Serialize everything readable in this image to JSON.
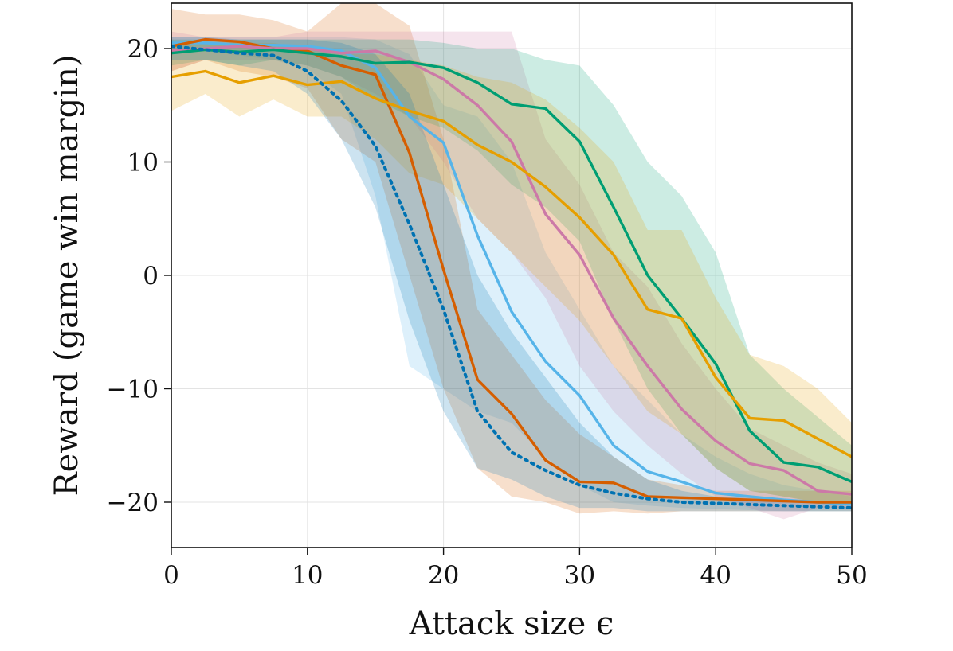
{
  "chart_data": {
    "type": "line",
    "title": "",
    "xlabel": "Attack size ϵ",
    "ylabel": "Reward (game win margin)",
    "xlim": [
      0,
      50
    ],
    "ylim": [
      -24,
      24
    ],
    "xticks": [
      0,
      10,
      20,
      30,
      40,
      50
    ],
    "yticks": [
      -20,
      -10,
      0,
      10,
      20
    ],
    "xtick_labels": [
      "0",
      "10",
      "20",
      "30",
      "40",
      "50"
    ],
    "ytick_labels": [
      "−20",
      "−10",
      "0",
      "10",
      "20"
    ],
    "grid": true,
    "legend": "none",
    "x": [
      0,
      2.5,
      5,
      7.5,
      10,
      12.5,
      15,
      17.5,
      20,
      22.5,
      25,
      27.5,
      30,
      32.5,
      35,
      37.5,
      40,
      42.5,
      45,
      47.5,
      50
    ],
    "series": [
      {
        "color": "#56B4E9",
        "style": "solid",
        "values": [
          20.5,
          20.5,
          20.3,
          20.3,
          20.2,
          19.8,
          18.3,
          14.0,
          11.7,
          3.5,
          -3.2,
          -7.6,
          -10.6,
          -15.0,
          -17.3,
          -18.2,
          -19.2,
          -19.5,
          -19.8,
          -20.0,
          -20.2
        ],
        "lower": [
          19.5,
          19.8,
          19.4,
          19.0,
          18.2,
          16.0,
          7.0,
          -8.0,
          -10.0,
          -12.0,
          -13.0,
          -16.0,
          -18.5,
          -20.0,
          -20.3,
          -20.5,
          -20.6,
          -20.7,
          -20.8,
          -20.8,
          -20.8
        ],
        "upper": [
          21.0,
          21.0,
          21.0,
          21.0,
          21.0,
          21.0,
          20.8,
          19.5,
          15.0,
          14.0,
          10.0,
          2.0,
          -3.0,
          -8.0,
          -11.0,
          -14.0,
          -16.0,
          -17.5,
          -18.5,
          -19.0,
          -19.5
        ]
      },
      {
        "color": "#D55E00",
        "style": "solid",
        "values": [
          20.2,
          20.8,
          20.6,
          20.0,
          19.8,
          18.5,
          17.7,
          10.8,
          0.5,
          -9.2,
          -12.2,
          -16.3,
          -18.2,
          -18.3,
          -19.5,
          -19.6,
          -19.7,
          -19.8,
          -19.9,
          -20.0,
          -20.0
        ],
        "lower": [
          18.0,
          19.0,
          18.0,
          17.5,
          16.5,
          12.0,
          10.0,
          0.0,
          -10.0,
          -17.0,
          -19.5,
          -20.0,
          -21.0,
          -20.8,
          -21.0,
          -20.8,
          -20.8,
          -20.8,
          -20.8,
          -20.8,
          -20.8
        ],
        "upper": [
          23.5,
          23.0,
          23.0,
          22.5,
          21.5,
          24.0,
          24.0,
          22.0,
          12.0,
          -3.0,
          -7.0,
          -11.0,
          -14.0,
          -16.0,
          -18.0,
          -18.5,
          -19.0,
          -19.0,
          -19.0,
          -19.0,
          -19.0
        ]
      },
      {
        "color": "#CC79A7",
        "style": "solid",
        "values": [
          19.8,
          20.0,
          20.2,
          20.0,
          20.0,
          19.6,
          19.8,
          18.8,
          17.3,
          15.0,
          11.8,
          5.4,
          1.8,
          -3.8,
          -8.0,
          -11.8,
          -14.6,
          -16.6,
          -17.2,
          -19.0,
          -19.3
        ],
        "lower": [
          18.0,
          19.0,
          19.0,
          19.0,
          18.5,
          17.5,
          16.0,
          14.0,
          10.0,
          5.0,
          2.0,
          -2.0,
          -8.0,
          -12.0,
          -15.0,
          -17.5,
          -19.5,
          -20.5,
          -21.5,
          -20.5,
          -20.5
        ],
        "upper": [
          21.5,
          21.0,
          21.0,
          21.0,
          21.5,
          21.5,
          21.5,
          21.5,
          21.5,
          21.5,
          21.5,
          12.0,
          8.0,
          2.0,
          -1.0,
          -6.0,
          -10.0,
          -13.5,
          -15.0,
          -16.5,
          -17.5
        ]
      },
      {
        "color": "#009E73",
        "style": "solid",
        "values": [
          19.6,
          19.9,
          19.7,
          19.9,
          19.6,
          19.3,
          18.7,
          18.8,
          18.3,
          17.0,
          15.1,
          14.7,
          11.8,
          6.0,
          0.0,
          -3.8,
          -7.8,
          -13.7,
          -16.5,
          -16.9,
          -18.2
        ],
        "lower": [
          18.5,
          19.0,
          18.5,
          19.0,
          18.5,
          17.5,
          15.5,
          14.0,
          13.0,
          11.0,
          8.0,
          6.0,
          3.0,
          -4.0,
          -10.0,
          -14.0,
          -17.0,
          -19.0,
          -19.5,
          -20.0,
          -20.3
        ],
        "upper": [
          20.8,
          20.8,
          20.8,
          20.8,
          20.8,
          20.8,
          20.8,
          20.8,
          20.5,
          20.0,
          20.0,
          19.0,
          18.5,
          15.0,
          10.0,
          7.0,
          2.0,
          -7.0,
          -10.0,
          -12.5,
          -15.0
        ]
      },
      {
        "color": "#E69F00",
        "style": "solid",
        "values": [
          17.5,
          18.0,
          17.0,
          17.6,
          16.8,
          17.1,
          15.6,
          14.5,
          13.6,
          11.5,
          10.0,
          7.8,
          5.1,
          1.8,
          -3.0,
          -3.8,
          -9.0,
          -12.6,
          -12.8,
          -14.4,
          -16.0
        ],
        "lower": [
          14.5,
          16.0,
          14.0,
          15.5,
          14.0,
          14.0,
          12.0,
          9.0,
          8.0,
          5.0,
          2.0,
          -1.0,
          -4.0,
          -8.0,
          -12.0,
          -14.0,
          -17.0,
          -19.0,
          -19.5,
          -20.0,
          -20.3
        ],
        "upper": [
          20.5,
          20.5,
          20.5,
          20.5,
          20.0,
          19.5,
          19.5,
          19.0,
          18.5,
          17.5,
          17.0,
          15.5,
          13.0,
          10.0,
          4.0,
          4.0,
          -2.0,
          -7.0,
          -8.0,
          -10.0,
          -13.0
        ]
      },
      {
        "color": "#0072B2",
        "style": "dotted",
        "values": [
          20.2,
          19.9,
          19.6,
          19.4,
          18.0,
          15.4,
          11.4,
          4.5,
          -3.0,
          -12.0,
          -15.6,
          -17.2,
          -18.5,
          -19.2,
          -19.7,
          -20.0,
          -20.1,
          -20.2,
          -20.3,
          -20.4,
          -20.5
        ],
        "lower": [
          19.0,
          19.0,
          18.5,
          18.0,
          16.0,
          12.0,
          6.0,
          -4.0,
          -12.0,
          -17.0,
          -18.0,
          -19.5,
          -20.5,
          -20.5,
          -20.8,
          -20.8,
          -20.8,
          -20.8,
          -20.8,
          -20.8,
          -20.8
        ],
        "upper": [
          21.0,
          21.0,
          20.8,
          20.8,
          20.8,
          20.5,
          19.5,
          16.0,
          8.0,
          0.0,
          -5.0,
          -9.0,
          -13.0,
          -16.0,
          -18.0,
          -19.0,
          -19.5,
          -19.6,
          -19.8,
          -20.0,
          -20.0
        ]
      }
    ]
  }
}
